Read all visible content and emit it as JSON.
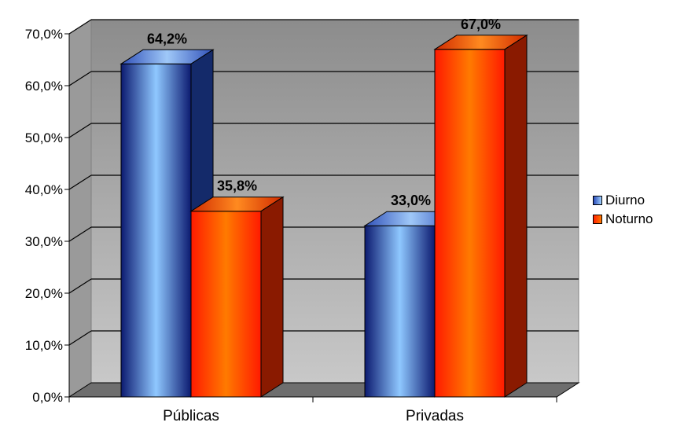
{
  "chart_data": {
    "type": "bar",
    "style": "3d-clustered-column",
    "categories": [
      "Públicas",
      "Privadas"
    ],
    "series": [
      {
        "name": "Diurno",
        "values": [
          64.2,
          33.0
        ],
        "labels": [
          "64,2%",
          "33,0%"
        ],
        "color": "#1f3fa8"
      },
      {
        "name": "Noturno",
        "values": [
          35.8,
          67.0
        ],
        "labels": [
          "35,8%",
          "67,0%"
        ],
        "color": "#ff3000"
      }
    ],
    "ylim": [
      0,
      70
    ],
    "yticks": [
      "0,0%",
      "10,0%",
      "20,0%",
      "30,0%",
      "40,0%",
      "50,0%",
      "60,0%",
      "70,0%"
    ],
    "grid": true,
    "legend_position": "right",
    "title": "",
    "xlabel": "",
    "ylabel": ""
  },
  "colors": {
    "wall": "#a0a0a0",
    "floor": "#6e6e6e",
    "diurno": "#1f3fa8",
    "noturno": "#ff3000"
  }
}
